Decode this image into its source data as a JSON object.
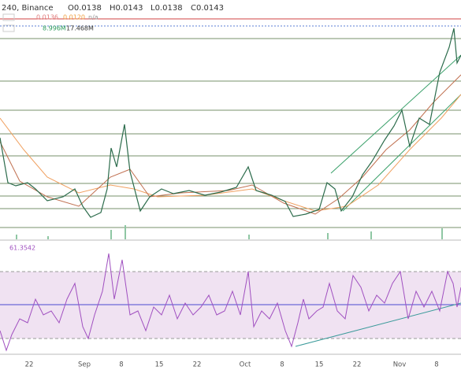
{
  "header": {
    "symbol": "240, Binance",
    "open": "O0.0138",
    "high": "H0.0143",
    "low": "L0.0138",
    "close": "C0.0143"
  },
  "indicators": {
    "ma_fast": "0.0136",
    "ma_slow": "0.0120",
    "ma_extra": "n/a",
    "volume": "8.996M",
    "volume_ma": "17.468M"
  },
  "rsi": {
    "value": "61.3542"
  },
  "x_axis": {
    "labels": [
      "22",
      "Sep",
      "8",
      "15",
      "22",
      "Oct",
      "8",
      "15",
      "22",
      "Nov",
      "8"
    ]
  }
}
